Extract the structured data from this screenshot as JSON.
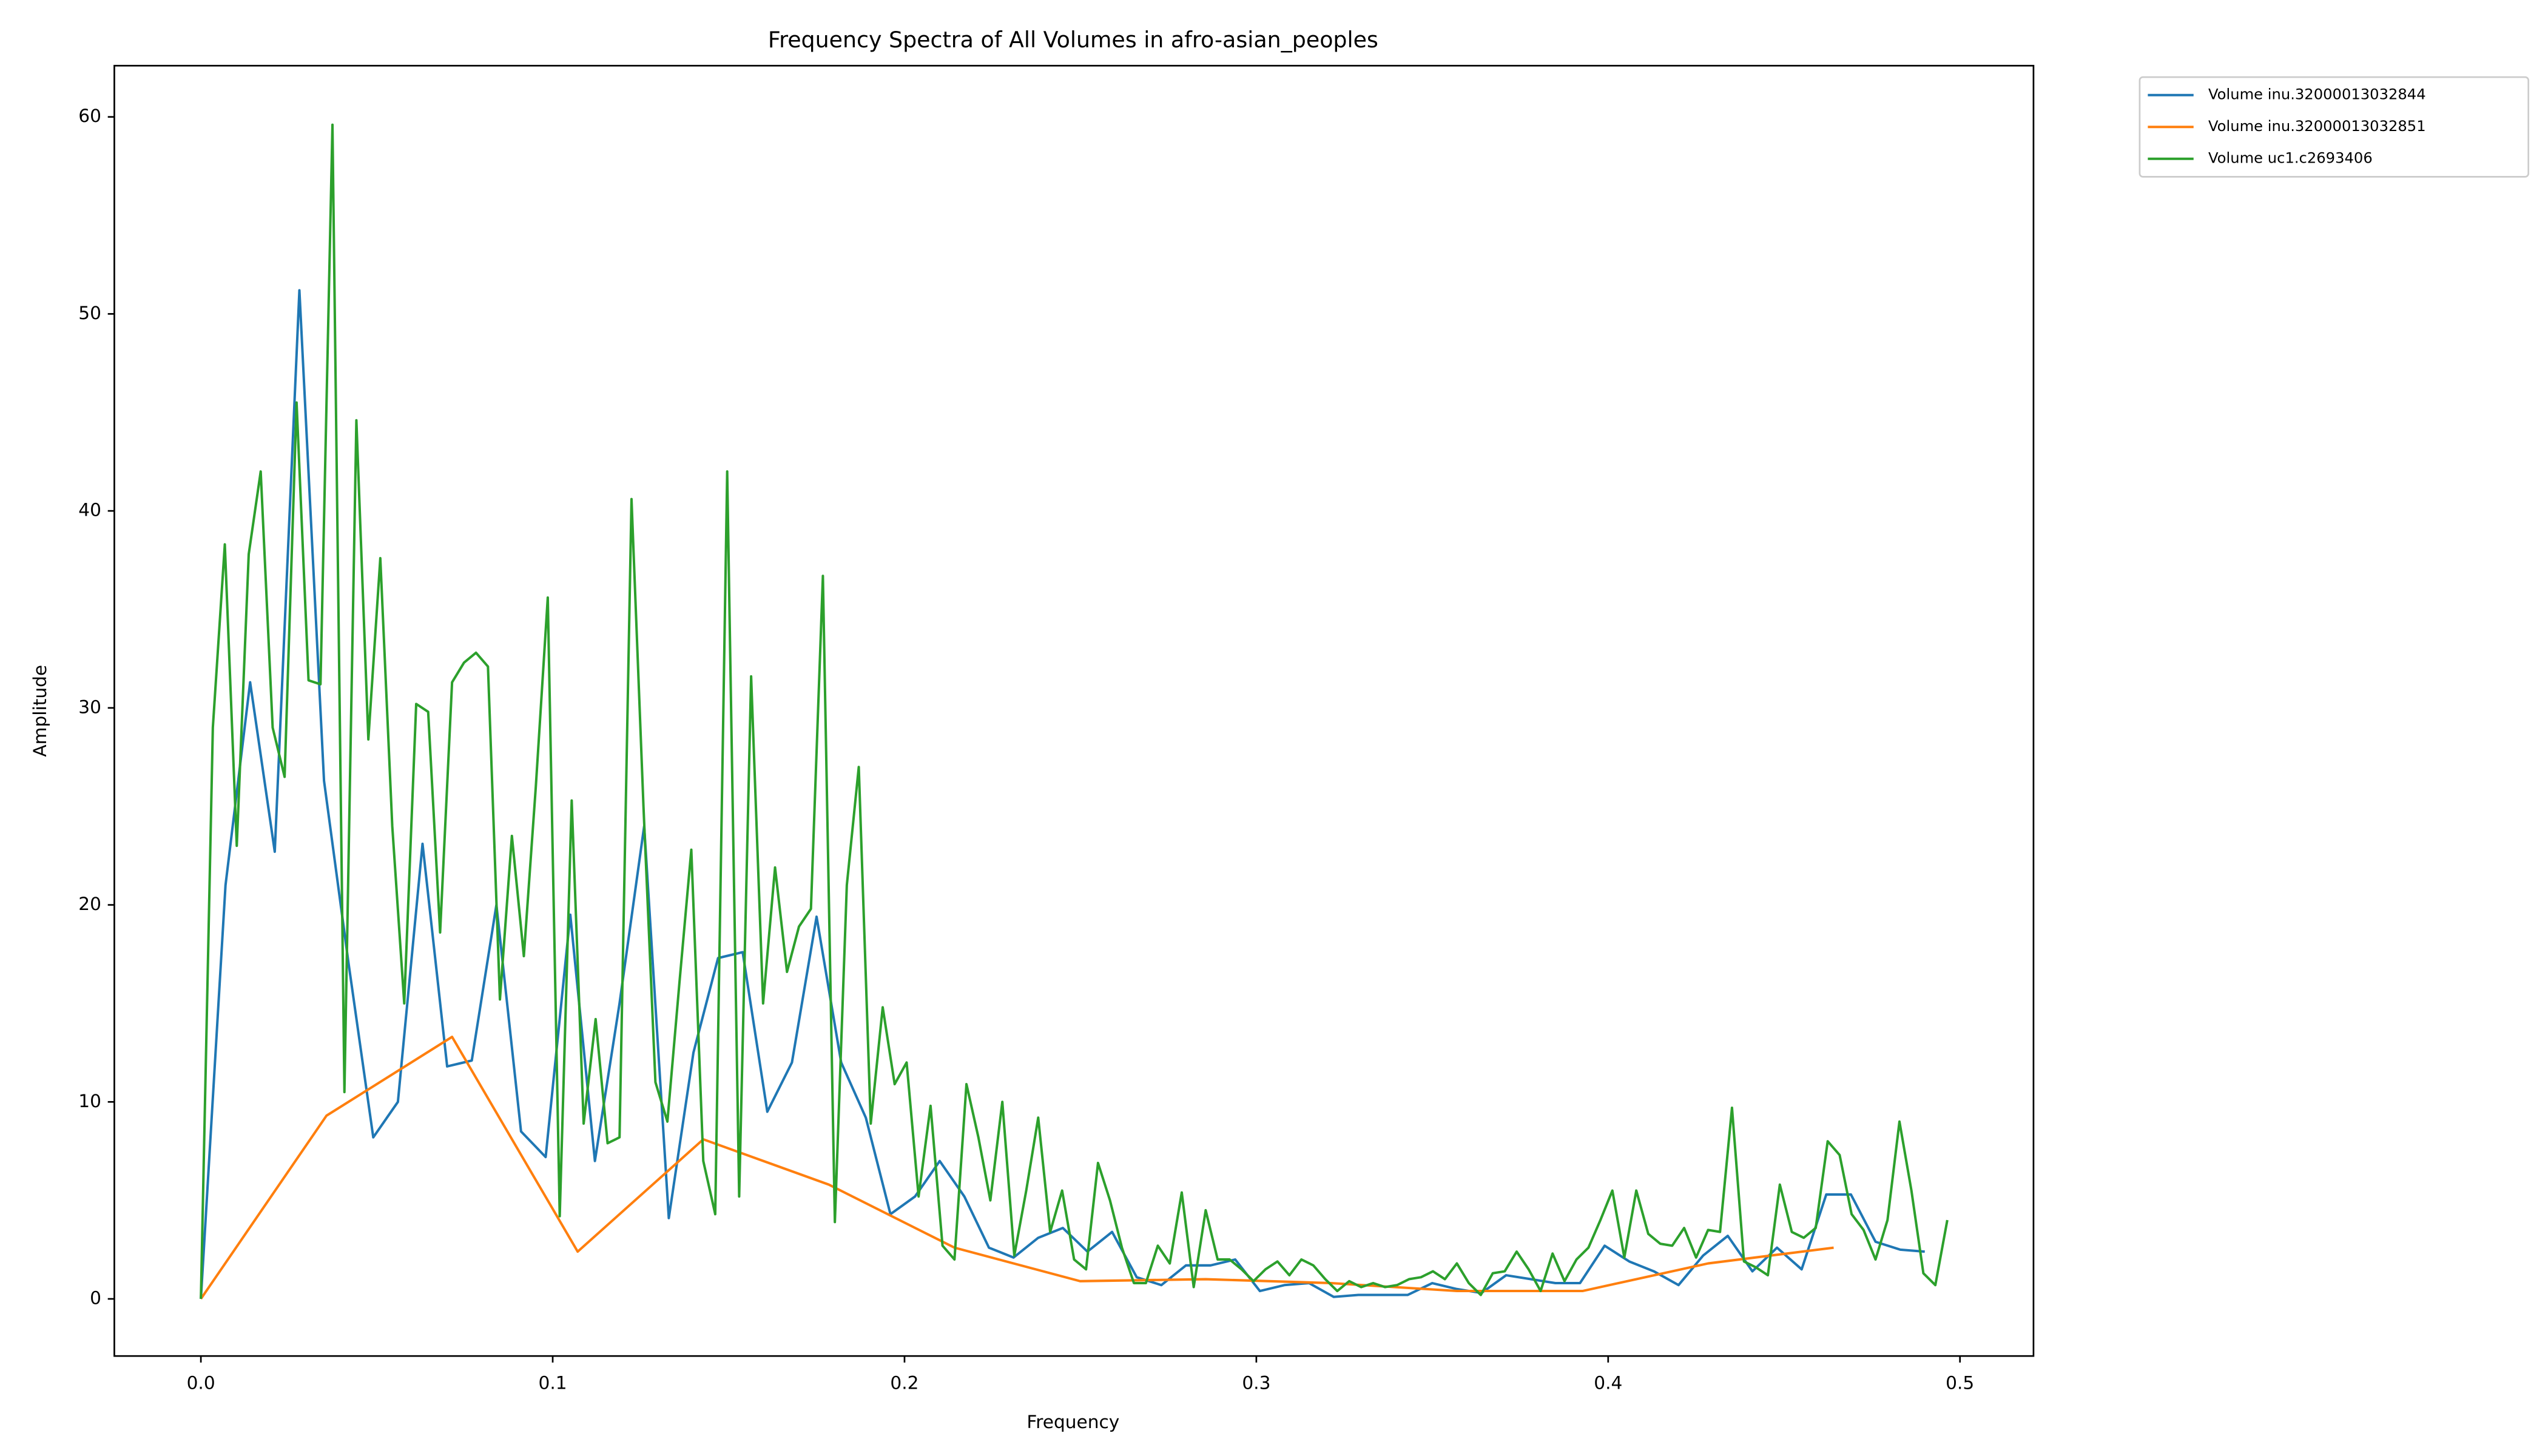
{
  "chart_data": {
    "type": "line",
    "title": "Frequency Spectra of All Volumes in afro-asian_peoples",
    "x_label": "Frequency",
    "y_label": "Amplitude",
    "xlim": [
      -0.0246,
      0.5209
    ],
    "ylim": [
      -2.9,
      62.6
    ],
    "xticks": [
      {
        "value": 0,
        "label": "0.0"
      },
      0.1,
      0.2,
      0.3,
      0.4,
      0.5
    ],
    "yticks": [
      0,
      10,
      20,
      30,
      40,
      50,
      60
    ],
    "grid": false,
    "legend": "outside upper right",
    "series": [
      {
        "name": "Volume inu.32000013032844",
        "color": "#1f77b4",
        "x": [
          0,
          0.007,
          0.014,
          0.021,
          0.028,
          0.035,
          0.042,
          0.049,
          0.056,
          0.063,
          0.07,
          0.077,
          0.084,
          0.091,
          0.098,
          0.105,
          0.112,
          0.119,
          0.126,
          0.133,
          0.14,
          0.147,
          0.154,
          0.161,
          0.168,
          0.175,
          0.182,
          0.189,
          0.196,
          0.203,
          0.21,
          0.217,
          0.224,
          0.231,
          0.238,
          0.245,
          0.252,
          0.259,
          0.266,
          0.273,
          0.28,
          0.287,
          0.294,
          0.301,
          0.308,
          0.315,
          0.322,
          0.329,
          0.336,
          0.343,
          0.35,
          0.357,
          0.364,
          0.371,
          0.378,
          0.385,
          0.392,
          0.399,
          0.406,
          0.413,
          0.42,
          0.427,
          0.434,
          0.441,
          0.448,
          0.455,
          0.462,
          0.469,
          0.476,
          0.483,
          0.49
        ],
        "values": [
          0,
          21,
          31.3,
          22.7,
          51.2,
          26.3,
          17,
          8.2,
          10,
          23.1,
          11.8,
          12.1,
          20,
          8.5,
          7.2,
          19.5,
          7,
          15,
          24,
          4.1,
          12.5,
          17.3,
          17.6,
          9.5,
          12,
          19.4,
          12,
          9.2,
          4.3,
          5.2,
          7,
          5.2,
          2.6,
          2.1,
          3.1,
          3.6,
          2.4,
          3.4,
          1.1,
          0.7,
          1.7,
          1.7,
          2,
          0.4,
          0.7,
          0.8,
          0.1,
          0.2,
          0.2,
          0.2,
          0.8,
          0.5,
          0.3,
          1.2,
          1,
          0.8,
          0.8,
          2.7,
          1.9,
          1.4,
          0.7,
          2.2,
          3.2,
          1.4,
          2.6,
          1.5,
          5.3,
          5.3,
          2.9,
          2.5,
          2.4
        ]
      },
      {
        "name": "Volume inu.32000013032851",
        "color": "#ff7f0e",
        "x": [
          0,
          0.0357,
          0.0714,
          0.1071,
          0.1428,
          0.1785,
          0.2142,
          0.2499,
          0.2856,
          0.3213,
          0.357,
          0.3927,
          0.4284,
          0.4641
        ],
        "values": [
          0,
          9.3,
          13.3,
          2.4,
          8.1,
          5.8,
          2.6,
          0.9,
          1,
          0.8,
          0.4,
          0.4,
          1.8,
          2.6
        ]
      },
      {
        "name": "Volume uc1.c2693406",
        "color": "#2ca02c",
        "x": [
          0,
          0.0034,
          0.0068,
          0.0102,
          0.0136,
          0.017,
          0.0204,
          0.0238,
          0.0272,
          0.0306,
          0.034,
          0.0374,
          0.0408,
          0.0442,
          0.0476,
          0.051,
          0.0544,
          0.0578,
          0.0612,
          0.0646,
          0.068,
          0.0714,
          0.0748,
          0.0782,
          0.0816,
          0.085,
          0.0884,
          0.0918,
          0.0952,
          0.0986,
          0.102,
          0.1054,
          0.1088,
          0.1122,
          0.1156,
          0.119,
          0.1224,
          0.1258,
          0.1292,
          0.1326,
          0.136,
          0.1394,
          0.1428,
          0.1462,
          0.1496,
          0.153,
          0.1564,
          0.1598,
          0.1632,
          0.1666,
          0.17,
          0.1734,
          0.1768,
          0.1802,
          0.1836,
          0.187,
          0.1904,
          0.1938,
          0.1972,
          0.2006,
          0.204,
          0.2074,
          0.2108,
          0.2142,
          0.2176,
          0.221,
          0.2244,
          0.2278,
          0.2312,
          0.2346,
          0.238,
          0.2414,
          0.2448,
          0.2482,
          0.2516,
          0.255,
          0.2584,
          0.2618,
          0.2652,
          0.2686,
          0.272,
          0.2754,
          0.2788,
          0.2822,
          0.2856,
          0.289,
          0.2924,
          0.2958,
          0.2992,
          0.3026,
          0.306,
          0.3094,
          0.3128,
          0.3162,
          0.3196,
          0.323,
          0.3264,
          0.3298,
          0.3332,
          0.3366,
          0.34,
          0.3434,
          0.3468,
          0.3502,
          0.3536,
          0.357,
          0.3604,
          0.3638,
          0.3672,
          0.3706,
          0.374,
          0.3774,
          0.3808,
          0.3842,
          0.3876,
          0.391,
          0.3944,
          0.3978,
          0.4012,
          0.4046,
          0.408,
          0.4114,
          0.4148,
          0.4182,
          0.4216,
          0.425,
          0.4284,
          0.4318,
          0.4352,
          0.4386,
          0.442,
          0.4454,
          0.4488,
          0.4522,
          0.4556,
          0.459,
          0.4624,
          0.4658,
          0.4692,
          0.4726,
          0.476,
          0.4794,
          0.4828,
          0.4862,
          0.4896,
          0.493,
          0.4964
        ],
        "values": [
          0,
          29,
          38.3,
          23,
          37.8,
          42,
          29,
          26.5,
          45.5,
          31.4,
          31.2,
          59.6,
          10.5,
          44.6,
          28.4,
          37.6,
          24,
          15,
          30.2,
          29.8,
          18.6,
          31.3,
          32.3,
          32.8,
          32.1,
          15.2,
          23.5,
          17.4,
          26,
          35.6,
          4.2,
          25.3,
          8.9,
          14.2,
          7.9,
          8.2,
          40.6,
          25,
          11,
          9,
          16,
          22.8,
          7,
          4.3,
          42,
          5.2,
          31.6,
          15,
          21.9,
          16.6,
          18.9,
          19.8,
          36.7,
          3.9,
          21,
          27,
          8.9,
          14.8,
          10.9,
          12,
          5.2,
          9.8,
          2.7,
          2,
          10.9,
          8.2,
          5,
          10,
          2.2,
          5.5,
          9.2,
          3.4,
          5.5,
          2,
          1.5,
          6.9,
          5,
          2.6,
          0.8,
          0.8,
          2.7,
          1.8,
          5.4,
          0.6,
          4.5,
          2,
          2,
          1.5,
          0.9,
          1.5,
          1.9,
          1.2,
          2,
          1.7,
          1,
          0.4,
          0.9,
          0.6,
          0.8,
          0.6,
          0.7,
          1,
          1.1,
          1.4,
          1,
          1.8,
          0.8,
          0.2,
          1.3,
          1.4,
          2.4,
          1.5,
          0.4,
          2.3,
          0.9,
          2,
          2.6,
          4,
          5.5,
          2.1,
          5.5,
          3.3,
          2.8,
          2.7,
          3.6,
          2.1,
          3.5,
          3.4,
          9.7,
          1.9,
          1.6,
          1.2,
          5.8,
          3.4,
          3.1,
          3.6,
          8,
          7.3,
          4.3,
          3.5,
          2,
          4,
          9,
          5.5,
          1.3,
          0.7,
          4
        ]
      }
    ]
  }
}
